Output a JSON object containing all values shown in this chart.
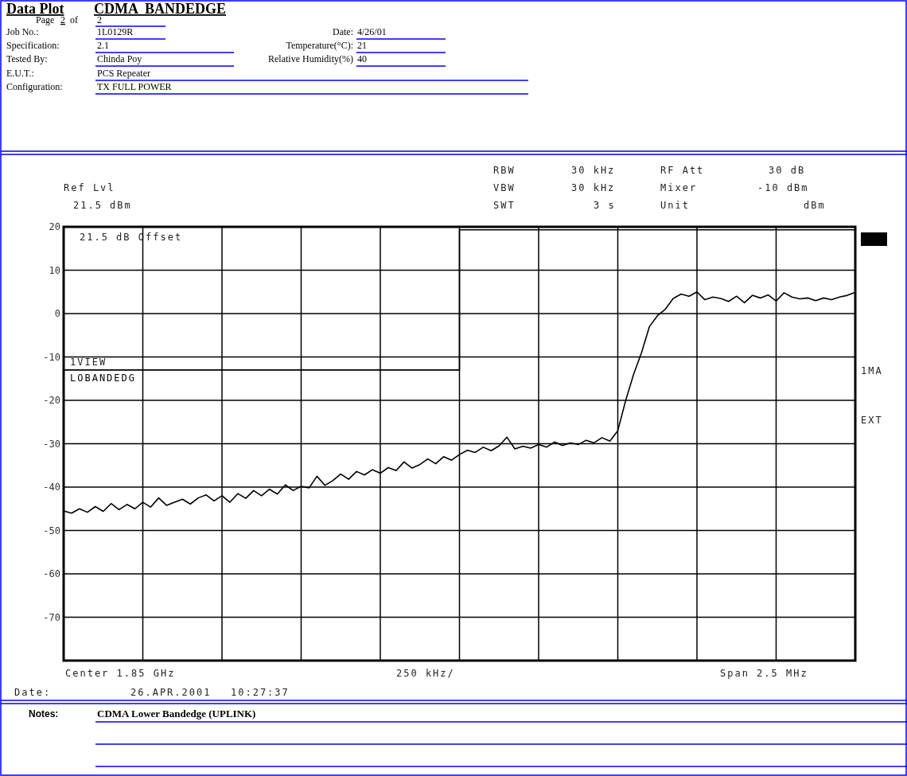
{
  "chart_data": {
    "type": "line",
    "title": "Data Plot",
    "subtitle": "CDMA  BANDEDGE",
    "categories": [
      null,
      null,
      null,
      null,
      null,
      null,
      null,
      null,
      null,
      null,
      null,
      null,
      null,
      null,
      null,
      null,
      null,
      null,
      null,
      null,
      null,
      null,
      null,
      null,
      null,
      null,
      null,
      null,
      null,
      null,
      null,
      null,
      null,
      null,
      null,
      null,
      null,
      null,
      null,
      null,
      null,
      null,
      null,
      null,
      null,
      null,
      null,
      null,
      null,
      null,
      null,
      null,
      null,
      null,
      null,
      null,
      null,
      null,
      null,
      null,
      null,
      null,
      null,
      null,
      null,
      null,
      null,
      null,
      null,
      null,
      null,
      null,
      null,
      null,
      null,
      null,
      null,
      null,
      null,
      null,
      null,
      null,
      null,
      null,
      null,
      null,
      null,
      null,
      null,
      null,
      null,
      null,
      null,
      null,
      null,
      null,
      null,
      null,
      null,
      null,
      null
    ],
    "ylim": [
      -80,
      20
    ],
    "yticks": [
      20,
      10,
      0,
      -10,
      -20,
      -30,
      -40,
      -50,
      -60,
      -70
    ],
    "grid": true,
    "series": [
      {
        "color": "#000000",
        "values": [
          -45.5,
          -46,
          -45,
          -45.8,
          -44.5,
          -45.6,
          -43.8,
          -45.2,
          -44,
          -45,
          -43.5,
          -44.6,
          -42.5,
          -44.2,
          -43.5,
          -42.8,
          -43.9,
          -42.5,
          -41.8,
          -43.2,
          -42,
          -43.5,
          -41.5,
          -42.6,
          -40.8,
          -42,
          -40.5,
          -41.6,
          -39.5,
          -40.8,
          -39.8,
          -40.2,
          -37.5,
          -39.6,
          -38.5,
          -37,
          -38.2,
          -36.4,
          -37.2,
          -36,
          -36.8,
          -35.5,
          -36.2,
          -34.2,
          -35.6,
          -34.8,
          -33.5,
          -34.6,
          -33,
          -33.8,
          -32.5,
          -31.5,
          -32,
          -30.8,
          -31.6,
          -30.5,
          -28.5,
          -31.2,
          -30.6,
          -31,
          -30.2,
          -30.8,
          -29.6,
          -30.4,
          -29.8,
          -30.2,
          -29.2,
          -29.8,
          -28.6,
          -29.4,
          -27,
          -20,
          -14,
          -9,
          -3,
          -0.5,
          1,
          3.5,
          4.5,
          4,
          5,
          3.2,
          3.8,
          3.5,
          2.8,
          4,
          2.5,
          4.2,
          3.6,
          4.3,
          2.9,
          4.8,
          3.8,
          3.4,
          3.6,
          3,
          3.6,
          3.2,
          3.8,
          4.2,
          4.9
        ]
      },
      {
        "name": "LOBANDEDG",
        "type": "step",
        "color": "#000000",
        "values": [
          -13,
          -13,
          -13,
          -13,
          -13,
          -13,
          -13,
          -13,
          -13,
          -13,
          -13,
          -13,
          -13,
          -13,
          -13,
          -13,
          -13,
          -13,
          -13,
          -13,
          -13,
          -13,
          -13,
          -13,
          -13,
          -13,
          -13,
          -13,
          -13,
          -13,
          -13,
          -13,
          -13,
          -13,
          -13,
          -13,
          -13,
          -13,
          -13,
          -13,
          -13,
          -13,
          -13,
          -13,
          -13,
          -13,
          -13,
          -13,
          -13,
          -13,
          -13,
          19.3,
          19.3,
          19.3,
          19.3,
          19.3,
          19.3,
          19.3,
          19.3,
          19.3,
          19.3,
          19.3,
          19.3,
          19.3,
          19.3,
          19.3,
          19.3,
          19.3,
          19.3,
          19.3,
          19.3,
          19.3,
          19.3,
          19.3,
          19.3,
          19.3,
          19.3,
          19.3,
          19.3,
          19.3,
          19.3,
          19.3,
          19.3,
          19.3,
          19.3,
          19.3,
          19.3,
          19.3,
          19.3,
          19.3,
          19.3,
          19.3,
          19.3,
          19.3,
          19.3,
          19.3,
          19.3,
          19.3,
          19.3,
          19.3,
          19.3
        ]
      }
    ],
    "annotations": [
      "Page",
      "2",
      "of",
      "2",
      "Job No.:",
      "1L0129R",
      "Date:",
      "4/26/01",
      "Specification:",
      "2.1",
      "Temperature(°C):",
      "21",
      "Tested By:",
      "Chinda Poy",
      "Relative Humidity(%)",
      "40",
      "E.U.T.:",
      "PCS Repeater",
      "Configuration:",
      "TX FULL POWER",
      "Ref Lvl",
      "21.5 dBm",
      "RBW",
      "30 kHz",
      "RF Att",
      "30 dB",
      "VBW",
      "30 kHz",
      "Mixer",
      "-10 dBm",
      "SWT",
      "3 s",
      "Unit",
      "dBm",
      "21.5 dB Offset",
      "1VIEW",
      "1MA",
      "EXT",
      "Center 1.85 GHz",
      "250 kHz/",
      "Span 2.5 MHz",
      "Date:",
      "26.APR.2001",
      "10:27:37",
      "Notes:",
      "CDMA Lower Bandedge (UPLINK)"
    ]
  }
}
